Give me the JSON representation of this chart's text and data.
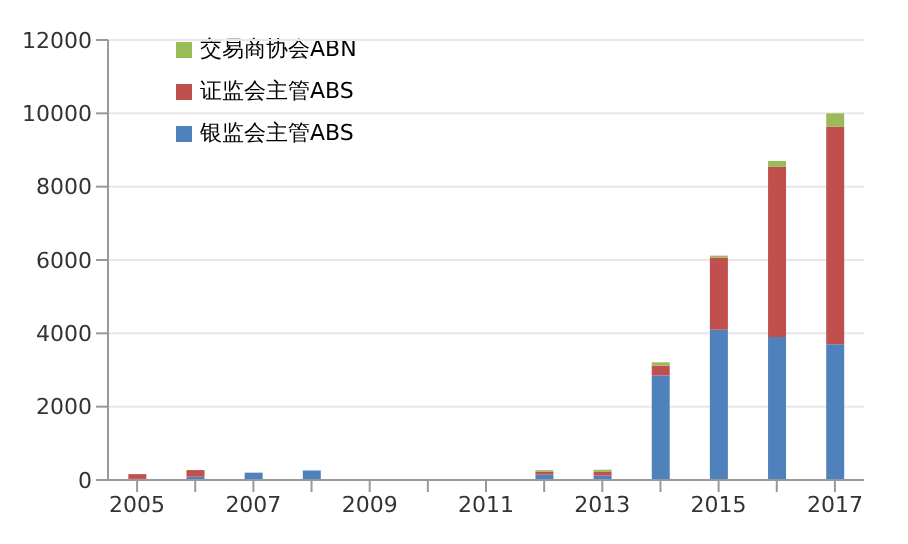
{
  "chart_data": {
    "type": "bar",
    "stacked": true,
    "categories": [
      "2005",
      null,
      "2007",
      null,
      "2009",
      null,
      "2011",
      null,
      "2013",
      null,
      "2015",
      null,
      "2017"
    ],
    "series": [
      {
        "name": "银监会主管ABS",
        "color": "#4f81bd",
        "values": [
          30,
          90,
          200,
          260,
          0,
          0,
          0,
          150,
          120,
          2850,
          4100,
          3900,
          3700
        ]
      },
      {
        "name": "证监会主管ABS",
        "color": "#c0504d",
        "values": [
          130,
          180,
          0,
          0,
          0,
          0,
          0,
          80,
          100,
          270,
          1970,
          4640,
          5940
        ]
      },
      {
        "name": "交易商协会ABN",
        "color": "#9bbb59",
        "values": [
          0,
          0,
          0,
          0,
          0,
          0,
          0,
          40,
          60,
          90,
          50,
          160,
          360
        ]
      }
    ],
    "ylim": [
      0,
      12000
    ],
    "yticks": [
      0,
      2000,
      4000,
      6000,
      8000,
      10000,
      12000
    ],
    "grid": "y",
    "legend": "top left"
  }
}
